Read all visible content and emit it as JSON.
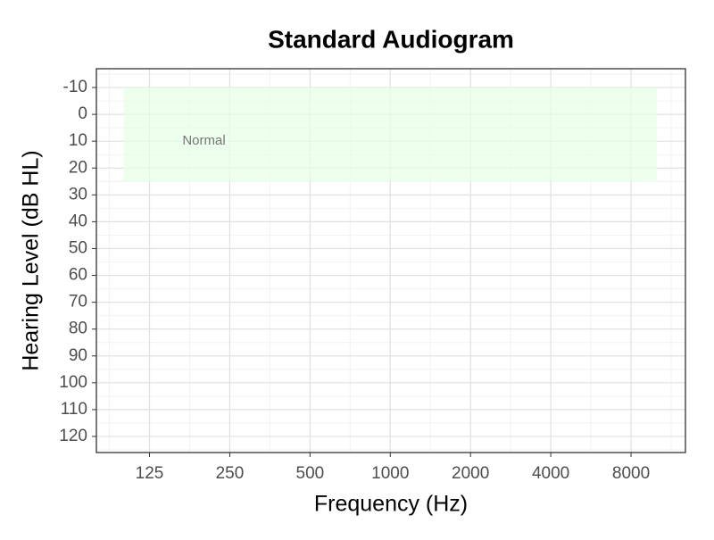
{
  "chart_data": {
    "type": "audiogram",
    "title": "Standard Audiogram",
    "x_label": "Frequency (Hz)",
    "y_label": "Hearing Level (dB HL)",
    "x_scale": "log2",
    "y_reversed": true,
    "xlim": [
      79,
      12800
    ],
    "ylim": [
      -17,
      126
    ],
    "xticks": [
      125,
      250,
      500,
      1000,
      2000,
      4000,
      8000
    ],
    "yticks": [
      -10,
      0,
      10,
      20,
      30,
      40,
      50,
      60,
      70,
      80,
      90,
      100,
      110,
      120
    ],
    "grid": true,
    "minor_grid": true,
    "regions": [
      {
        "label": "Normal",
        "x": [
          100,
          10000
        ],
        "y": [
          -10,
          25
        ],
        "color": "#e6ffe6",
        "label_x": 200,
        "label_y": 10
      }
    ]
  }
}
